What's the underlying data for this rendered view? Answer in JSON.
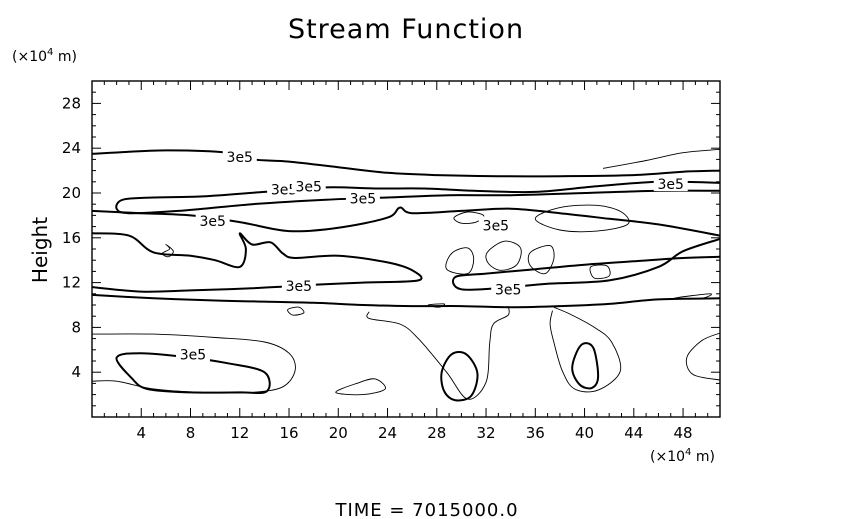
{
  "chart_data": {
    "type": "contour",
    "title": "Stream Function",
    "ylabel": "Height",
    "x_units_prefix": "(×10",
    "x_units_exp": "4",
    "x_units_suffix": " m)",
    "y_units_prefix": "(×10",
    "y_units_exp": "4",
    "y_units_suffix": " m)",
    "footer": "TIME  =  7015000.0",
    "xlim": [
      0,
      51
    ],
    "ylim": [
      0,
      30
    ],
    "x_ticks": [
      4,
      8,
      12,
      16,
      20,
      24,
      28,
      32,
      36,
      40,
      44,
      48
    ],
    "y_ticks": [
      4,
      8,
      12,
      16,
      20,
      24,
      28
    ],
    "grid": false,
    "contour_label_text": "3e5",
    "contour_labels": [
      {
        "x": 12,
        "y": 23.2
      },
      {
        "x": 15.6,
        "y": 20.3
      },
      {
        "x": 17.6,
        "y": 20.6
      },
      {
        "x": 22,
        "y": 19.5
      },
      {
        "x": 9.8,
        "y": 17.5
      },
      {
        "x": 32.8,
        "y": 17.1
      },
      {
        "x": 47,
        "y": 20.8
      },
      {
        "x": 16.8,
        "y": 11.7
      },
      {
        "x": 33.8,
        "y": 11.4
      },
      {
        "x": 8.2,
        "y": 5.6
      }
    ],
    "contours": [
      {
        "weight": "thick",
        "closed": false,
        "points": [
          [
            0,
            23.5
          ],
          [
            6,
            23.8
          ],
          [
            11,
            23.6
          ],
          [
            13,
            23.0
          ],
          [
            16,
            22.8
          ],
          [
            20,
            22.3
          ],
          [
            24,
            21.8
          ],
          [
            28,
            21.6
          ],
          [
            33,
            21.5
          ],
          [
            38,
            21.5
          ],
          [
            44,
            21.6
          ],
          [
            48,
            21.9
          ],
          [
            51,
            22.0
          ]
        ]
      },
      {
        "weight": "thin",
        "closed": false,
        "points": [
          [
            41.5,
            22.2
          ],
          [
            45,
            22.9
          ],
          [
            48,
            23.6
          ],
          [
            51,
            23.9
          ]
        ]
      },
      {
        "weight": "thick",
        "closed": false,
        "points": [
          [
            0,
            10.9
          ],
          [
            5,
            10.6
          ],
          [
            10,
            10.4
          ],
          [
            14,
            10.3
          ],
          [
            18,
            10.2
          ],
          [
            22,
            10.0
          ],
          [
            26,
            9.9
          ],
          [
            30,
            9.9
          ],
          [
            34,
            9.8
          ],
          [
            38,
            9.9
          ],
          [
            42,
            10.1
          ],
          [
            46,
            10.5
          ],
          [
            51,
            10.6
          ]
        ]
      },
      {
        "weight": "thick",
        "closed": false,
        "points": [
          [
            51,
            20.9
          ],
          [
            46,
            21.0
          ],
          [
            41,
            20.6
          ],
          [
            36,
            20.1
          ],
          [
            31,
            20.2
          ],
          [
            27,
            20.4
          ],
          [
            23,
            20.4
          ],
          [
            19,
            20.5
          ],
          [
            14,
            20.1
          ],
          [
            9,
            19.7
          ],
          [
            5,
            19.6
          ],
          [
            2.5,
            19.4
          ],
          [
            2,
            18.6
          ],
          [
            3,
            18.2
          ],
          [
            7,
            18.4
          ],
          [
            13,
            19.0
          ],
          [
            19,
            19.4
          ],
          [
            24,
            19.6
          ],
          [
            29,
            19.8
          ],
          [
            34,
            19.8
          ],
          [
            40,
            20.0
          ],
          [
            46,
            20.2
          ],
          [
            51,
            20.2
          ]
        ]
      },
      {
        "weight": "thick",
        "closed": false,
        "points": [
          [
            0,
            18.4
          ],
          [
            4,
            18.2
          ],
          [
            8,
            18.0
          ],
          [
            12,
            17.4
          ],
          [
            16,
            16.6
          ],
          [
            20,
            16.9
          ],
          [
            24,
            17.8
          ],
          [
            25,
            18.7
          ],
          [
            26,
            18.2
          ],
          [
            30,
            18.4
          ],
          [
            34,
            18.6
          ],
          [
            38,
            18.2
          ],
          [
            42,
            17.7
          ],
          [
            46,
            17.2
          ],
          [
            51,
            16.2
          ]
        ]
      },
      {
        "weight": "thick",
        "closed": false,
        "points": [
          [
            0,
            16.4
          ],
          [
            3,
            16.2
          ],
          [
            5,
            14.7
          ],
          [
            8,
            14.4
          ],
          [
            10,
            14.0
          ],
          [
            12,
            13.4
          ],
          [
            12.5,
            15.0
          ],
          [
            12,
            16.4
          ],
          [
            13,
            15.4
          ],
          [
            14.5,
            15.6
          ],
          [
            15.5,
            14.6
          ],
          [
            16.5,
            14.2
          ],
          [
            20,
            14.4
          ],
          [
            24,
            13.8
          ],
          [
            26,
            13.1
          ],
          [
            26.5,
            12.2
          ],
          [
            22,
            12.0
          ],
          [
            18,
            11.8
          ],
          [
            13,
            11.5
          ],
          [
            8,
            11.3
          ],
          [
            4,
            11.2
          ],
          [
            0,
            11.6
          ]
        ]
      },
      {
        "weight": "thick",
        "closed": false,
        "points": [
          [
            51,
            15.9
          ],
          [
            48,
            14.8
          ],
          [
            46,
            13.4
          ],
          [
            42,
            12.2
          ],
          [
            37,
            11.9
          ],
          [
            34,
            11.6
          ],
          [
            30,
            11.4
          ],
          [
            29.5,
            12.5
          ],
          [
            32,
            12.8
          ],
          [
            36,
            13.2
          ],
          [
            40,
            13.6
          ],
          [
            44,
            13.9
          ],
          [
            48,
            14.2
          ],
          [
            51,
            14.3
          ]
        ]
      },
      {
        "weight": "thin",
        "closed": true,
        "points": [
          [
            36,
            17.7
          ],
          [
            38,
            18.7
          ],
          [
            41,
            18.9
          ],
          [
            43,
            18.3
          ],
          [
            43.5,
            17.2
          ],
          [
            41,
            16.6
          ],
          [
            38,
            16.7
          ]
        ]
      },
      {
        "weight": "thin",
        "closed": true,
        "points": [
          [
            29.4,
            17.8
          ],
          [
            30.5,
            18.3
          ],
          [
            31.8,
            18.0
          ],
          [
            31.2,
            17.4
          ],
          [
            30,
            17.3
          ]
        ]
      },
      {
        "weight": "thin",
        "closed": true,
        "points": [
          [
            29.2,
            14.6
          ],
          [
            30.5,
            15.1
          ],
          [
            31,
            14.1
          ],
          [
            30.5,
            12.8
          ],
          [
            28.8,
            13.2
          ]
        ]
      },
      {
        "weight": "thin",
        "closed": true,
        "points": [
          [
            32.1,
            14.7
          ],
          [
            33.5,
            15.7
          ],
          [
            34.8,
            15.1
          ],
          [
            34.5,
            13.6
          ],
          [
            33.2,
            13.1
          ],
          [
            32.2,
            13.7
          ]
        ]
      },
      {
        "weight": "thin",
        "closed": true,
        "points": [
          [
            35.6,
            14.7
          ],
          [
            37.2,
            15.3
          ],
          [
            37.5,
            14.1
          ],
          [
            36.8,
            12.8
          ],
          [
            35.6,
            13.5
          ]
        ]
      },
      {
        "weight": "thin",
        "closed": true,
        "points": [
          [
            40.5,
            13.4
          ],
          [
            41.8,
            13.5
          ],
          [
            42,
            12.6
          ],
          [
            40.8,
            12.4
          ]
        ]
      },
      {
        "weight": "thin",
        "closed": true,
        "points": [
          [
            6,
            15.4
          ],
          [
            6.6,
            14.8
          ],
          [
            6.2,
            14.3
          ],
          [
            5.7,
            14.6
          ],
          [
            6.3,
            15.0
          ]
        ]
      },
      {
        "weight": "thin",
        "closed": true,
        "points": [
          [
            15.9,
            9.6
          ],
          [
            16.8,
            9.8
          ],
          [
            17.2,
            9.3
          ],
          [
            16.3,
            9.1
          ]
        ]
      },
      {
        "weight": "thin",
        "closed": true,
        "points": [
          [
            27.3,
            10.0
          ],
          [
            28.6,
            10.1
          ],
          [
            28.2,
            9.8
          ]
        ]
      },
      {
        "weight": "thin",
        "closed": true,
        "points": [
          [
            47.3,
            10.6
          ],
          [
            50.2,
            11.0
          ],
          [
            49.5,
            10.6
          ]
        ]
      },
      {
        "weight": "thin",
        "closed": false,
        "points": [
          [
            0,
            7.4
          ],
          [
            5,
            7.4
          ],
          [
            10,
            7.1
          ],
          [
            14,
            6.7
          ],
          [
            16,
            5.7
          ],
          [
            16.5,
            4.2
          ],
          [
            15.5,
            2.7
          ],
          [
            13,
            2.2
          ],
          [
            9,
            2.2
          ],
          [
            5,
            2.5
          ],
          [
            2,
            3.2
          ],
          [
            0,
            3.2
          ]
        ]
      },
      {
        "weight": "thick",
        "closed": true,
        "points": [
          [
            2,
            5.3
          ],
          [
            4,
            5.7
          ],
          [
            8,
            5.3
          ],
          [
            11,
            4.8
          ],
          [
            14,
            4.0
          ],
          [
            14.2,
            2.3
          ],
          [
            12,
            2.2
          ],
          [
            8,
            2.2
          ],
          [
            4.5,
            2.5
          ],
          [
            3.2,
            3.5
          ]
        ]
      },
      {
        "weight": "thin",
        "closed": false,
        "points": [
          [
            22.5,
            9.4
          ],
          [
            22.5,
            8.8
          ],
          [
            25,
            8.3
          ],
          [
            26.5,
            7.0
          ],
          [
            28.8,
            4.0
          ],
          [
            30.5,
            1.6
          ],
          [
            32,
            3.1
          ],
          [
            32.3,
            6.6
          ],
          [
            32.6,
            8.3
          ],
          [
            33.8,
            9.1
          ],
          [
            33.8,
            9.9
          ]
        ]
      },
      {
        "weight": "thick",
        "closed": true,
        "points": [
          [
            28.4,
            4.0
          ],
          [
            29.2,
            5.6
          ],
          [
            30.4,
            5.6
          ],
          [
            31.3,
            3.9
          ],
          [
            30.8,
            1.9
          ],
          [
            29.5,
            1.5
          ],
          [
            28.6,
            2.3
          ]
        ]
      },
      {
        "weight": "thin",
        "closed": false,
        "points": [
          [
            37.5,
            9.8
          ],
          [
            38.8,
            9.2
          ],
          [
            40.8,
            8.0
          ],
          [
            42.2,
            6.7
          ],
          [
            42.9,
            4.1
          ],
          [
            41.1,
            2.4
          ],
          [
            39.2,
            2.5
          ],
          [
            38.2,
            4.1
          ],
          [
            37.5,
            6.7
          ],
          [
            37.2,
            8.3
          ],
          [
            37.4,
            9.5
          ]
        ]
      },
      {
        "weight": "thick",
        "closed": true,
        "points": [
          [
            39.0,
            4.4
          ],
          [
            39.7,
            6.4
          ],
          [
            40.7,
            6.2
          ],
          [
            41.1,
            3.6
          ],
          [
            40.6,
            2.6
          ],
          [
            39.6,
            2.9
          ]
        ]
      },
      {
        "weight": "thin",
        "closed": false,
        "points": [
          [
            51,
            7.5
          ],
          [
            49.5,
            6.8
          ],
          [
            48.3,
            5.3
          ],
          [
            48.8,
            3.8
          ],
          [
            51,
            3.3
          ]
        ]
      },
      {
        "weight": "thin",
        "closed": true,
        "points": [
          [
            19.8,
            2.2
          ],
          [
            21.5,
            3.0
          ],
          [
            23,
            3.4
          ],
          [
            23.8,
            2.5
          ],
          [
            22,
            2.0
          ]
        ]
      }
    ]
  }
}
